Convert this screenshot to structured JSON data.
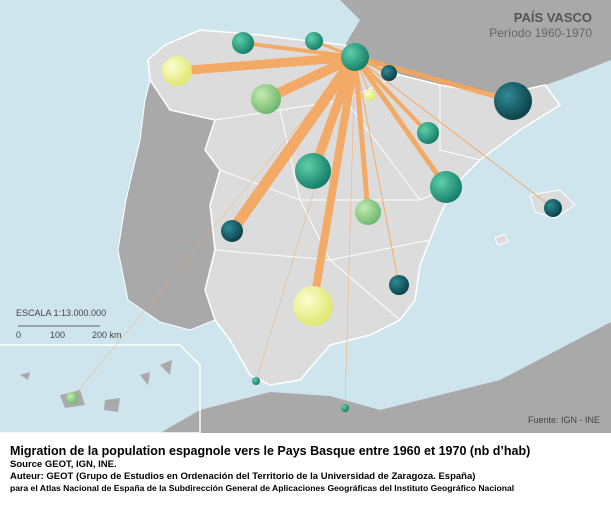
{
  "header": {
    "title": "PAÍS VASCO",
    "subtitle": "Período 1960-1970"
  },
  "scale": {
    "label": "ESCALA 1:13.000.000",
    "ticks": [
      "0",
      "100",
      "200 km"
    ]
  },
  "source": "Fuente: IGN - INE",
  "caption": {
    "title": "Migration de la population espagnole vers le Pays Basque entre 1960 et 1970 (nb d’hab)",
    "lines": [
      "Source GEOT, IGN, INE.",
      "Auteur: GEOT (Grupo de Estudios en Ordenación del Territorio de la Universidad de Zaragoza. España)",
      "para el Atlas Nacional de España de la Subdirección General de Aplicaciones Geográficas del Instituto Geográfico Nacional"
    ]
  }
}
